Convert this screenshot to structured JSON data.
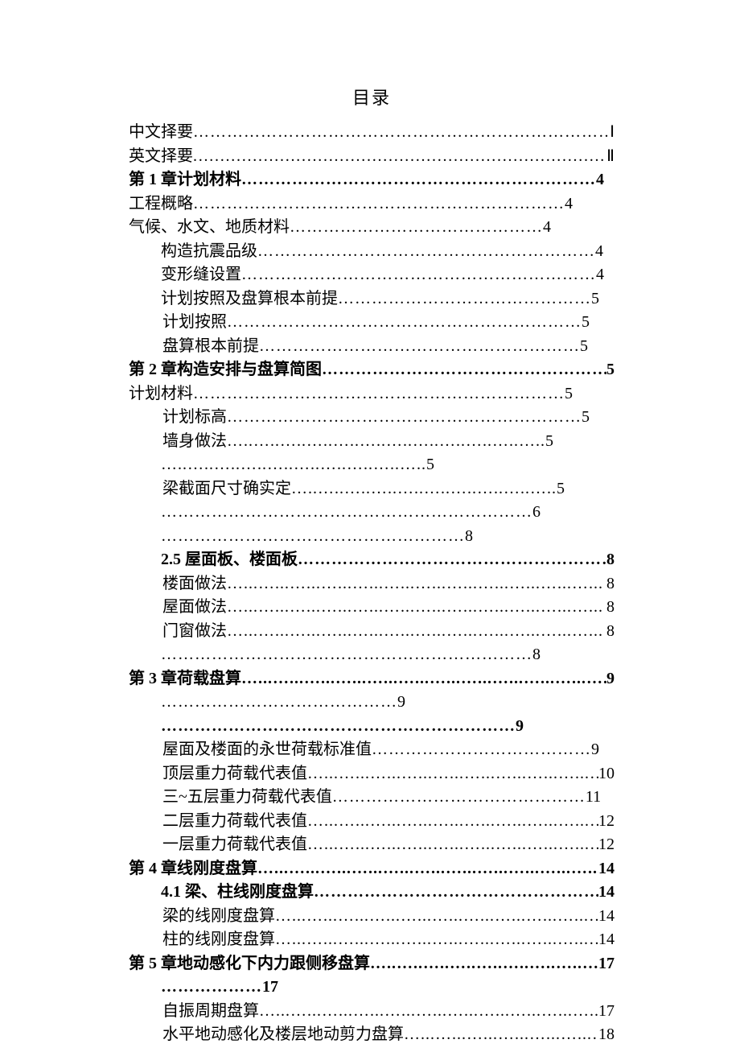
{
  "title": "目录",
  "entries": [
    {
      "label": "中文择要",
      "page": "Ⅰ",
      "indent": 0,
      "bold": false,
      "dotchar": "…",
      "dotrepeat": 26
    },
    {
      "label": "英文择要",
      "page": "Ⅱ",
      "indent": 0,
      "bold": false,
      "dotchar": ".…",
      "dotrepeat": 20
    },
    {
      "label": "第 1 章计划材料",
      "page": "4",
      "indent": 0,
      "bold": true,
      "dotchar": "…",
      "dotrepeat": 21
    },
    {
      "label": "工程概略",
      "page": "4",
      "indent": 0,
      "bold": false,
      "dotchar": "…",
      "dotrepeat": 22
    },
    {
      "label": "气候、水文、地质材料",
      "page": "4",
      "indent": 0,
      "bold": false,
      "dotchar": "…",
      "dotrepeat": 15
    },
    {
      "label": "构造抗震品级",
      "page": "4",
      "indent": 1,
      "bold": false,
      "dotchar": "…",
      "dotrepeat": 20
    },
    {
      "label": "变形缝设置",
      "page": "4",
      "indent": 1,
      "bold": false,
      "dotchar": "…",
      "dotrepeat": 21
    },
    {
      "label": "计划按照及盘算根本前提",
      "page": "5",
      "indent": 1,
      "bold": false,
      "dotchar": "…",
      "dotrepeat": 15
    },
    {
      "label": "计划按照",
      "page": "5",
      "indent": 2,
      "bold": false,
      "dotchar": "…",
      "dotrepeat": 21
    },
    {
      "label": "盘算根本前提",
      "page": "5",
      "indent": 2,
      "bold": false,
      "dotchar": "…",
      "dotrepeat": 19
    },
    {
      "label": "第 2 章构造安排与盘算简图",
      "page": "5",
      "indent": 0,
      "bold": true,
      "dotchar": "…",
      "dotrepeat": 17
    },
    {
      "label": "计划材料",
      "page": "5",
      "indent": 0,
      "bold": false,
      "dotchar": "…",
      "dotrepeat": 22
    },
    {
      "label": "计划标高",
      "page": "5",
      "indent": 2,
      "bold": false,
      "dotchar": "…",
      "dotrepeat": 21
    },
    {
      "label": "墙身做法",
      "page": "5",
      "indent": 2,
      "bold": false,
      "dotchar": "…..",
      "dotrepeat": 12
    },
    {
      "label": "",
      "page": "5",
      "indent": 1,
      "bold": false,
      "dotchar": "…..",
      "dotrepeat": 10
    },
    {
      "label": "梁截面尺寸确实定",
      "page": "5",
      "indent": 2,
      "bold": false,
      "dotchar": "…..",
      "dotrepeat": 10
    },
    {
      "label": "",
      "page": "6",
      "indent": 1,
      "bold": false,
      "dotchar": "…",
      "dotrepeat": 22
    },
    {
      "label": "",
      "page": "8",
      "indent": 1,
      "bold": false,
      "dotchar": "…",
      "dotrepeat": 18
    },
    {
      "label": "2.5 屋面板、楼面板",
      "page": "8",
      "indent": 1,
      "bold": true,
      "dotchar": "…",
      "dotrepeat": 21
    },
    {
      "label": "楼面做法",
      "page": "8",
      "indent": 2,
      "bold": false,
      "dotchar": "…...",
      "dotrepeat": 12
    },
    {
      "label": "屋面做法",
      "page": "8",
      "indent": 2,
      "bold": false,
      "dotchar": "…...",
      "dotrepeat": 12
    },
    {
      "label": "门窗做法",
      "page": "8",
      "indent": 2,
      "bold": false,
      "dotchar": "…...",
      "dotrepeat": 12
    },
    {
      "label": "",
      "page": "8",
      "indent": 1,
      "bold": false,
      "dotchar": "…",
      "dotrepeat": 22
    },
    {
      "label": "第 3 章荷载盘算",
      "page": "9",
      "indent": 0,
      "bold": true,
      "dotchar": "…...",
      "dotrepeat": 13
    },
    {
      "label": "",
      "page": "9",
      "indent": 1,
      "bold": false,
      "dotchar": "…",
      "dotrepeat": 14
    },
    {
      "label": "",
      "page": "9",
      "indent": 1,
      "bold": true,
      "dotchar": "…",
      "dotrepeat": 21
    },
    {
      "label": "屋面及楼面的永世荷载标准值",
      "page": "9",
      "indent": 2,
      "bold": false,
      "dotchar": "…",
      "dotrepeat": 13
    },
    {
      "label": "顶层重力荷载代表值",
      "page": "10",
      "indent": 2,
      "bold": false,
      "dotchar": "…...",
      "dotrepeat": 10
    },
    {
      "label": "三~五层重力荷载代表值",
      "page": "11",
      "indent": 2,
      "bold": false,
      "dotchar": "…",
      "dotrepeat": 15
    },
    {
      "label": "二层重力荷载代表值",
      "page": "12",
      "indent": 2,
      "bold": false,
      "dotchar": "…...",
      "dotrepeat": 10
    },
    {
      "label": "一层重力荷载代表值",
      "page": "12",
      "indent": 2,
      "bold": false,
      "dotchar": "…...",
      "dotrepeat": 10
    },
    {
      "label": "第 4 章线刚度盘算",
      "page": "14",
      "indent": 0,
      "bold": true,
      "dotchar": "…...",
      "dotrepeat": 12
    },
    {
      "label": "4.1 梁、柱线刚度盘算",
      "page": "14",
      "indent": 1,
      "bold": true,
      "dotchar": "…",
      "dotrepeat": 19
    },
    {
      "label": "梁的线刚度盘算",
      "page": "14",
      "indent": 2,
      "bold": false,
      "dotchar": "…...",
      "dotrepeat": 11
    },
    {
      "label": "柱的线刚度盘算",
      "page": "14",
      "indent": 2,
      "bold": false,
      "dotchar": "…...",
      "dotrepeat": 11
    },
    {
      "label": "第 5 章地动感化下内力跟侧移盘算",
      "page": "17",
      "indent": 0,
      "bold": true,
      "dotchar": "…..",
      "dotrepeat": 9
    },
    {
      "label": "",
      "page": "17",
      "indent": 1,
      "bold": true,
      "dotchar": "……",
      "dotrepeat": 3
    },
    {
      "label": "自振周期盘算",
      "page": "17",
      "indent": 2,
      "bold": false,
      "dotchar": "…...",
      "dotrepeat": 11
    },
    {
      "label": "水平地动感化及楼层地动剪力盘算",
      "page": "18",
      "indent": 2,
      "bold": false,
      "dotchar": "…...",
      "dotrepeat": 7
    }
  ]
}
